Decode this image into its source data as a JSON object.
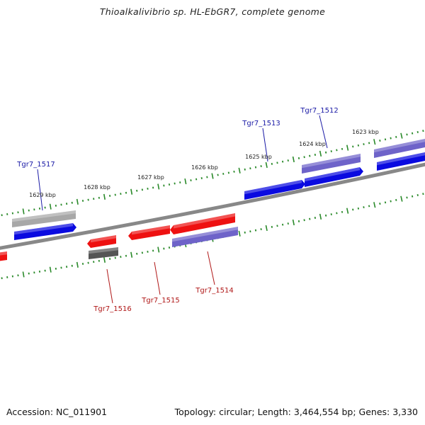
{
  "title": "Thioalkalivibrio sp. HL-EbGR7, complete genome",
  "footer": {
    "accession": "Accession: NC_011901",
    "topology": "Topology: circular; Length: 3,464,554 bp; Genes: 3,330"
  },
  "colors": {
    "forward_gene": "#0a0ae0",
    "reverse_gene": "#ee1111",
    "gene_purple": "#6e63c9",
    "gene_gray_light": "#a8a8a8",
    "gene_gray_dark": "#555555",
    "backbone": "#888888",
    "tick": "#2a8a2a",
    "label_blue": "#1a1aa6",
    "label_red": "#b01818",
    "kbp_text": "#222222"
  },
  "kbp_labels": [
    "1629 kbp",
    "1628 kbp",
    "1627 kbp",
    "1626 kbp",
    "1625 kbp",
    "1624 kbp",
    "1623 kbp"
  ],
  "gene_labels": {
    "top": [
      "Tgr7_1517",
      "Tgr7_1513",
      "Tgr7_1512"
    ],
    "bottom": [
      "Tgr7_1516",
      "Tgr7_1515",
      "Tgr7_1514"
    ]
  }
}
